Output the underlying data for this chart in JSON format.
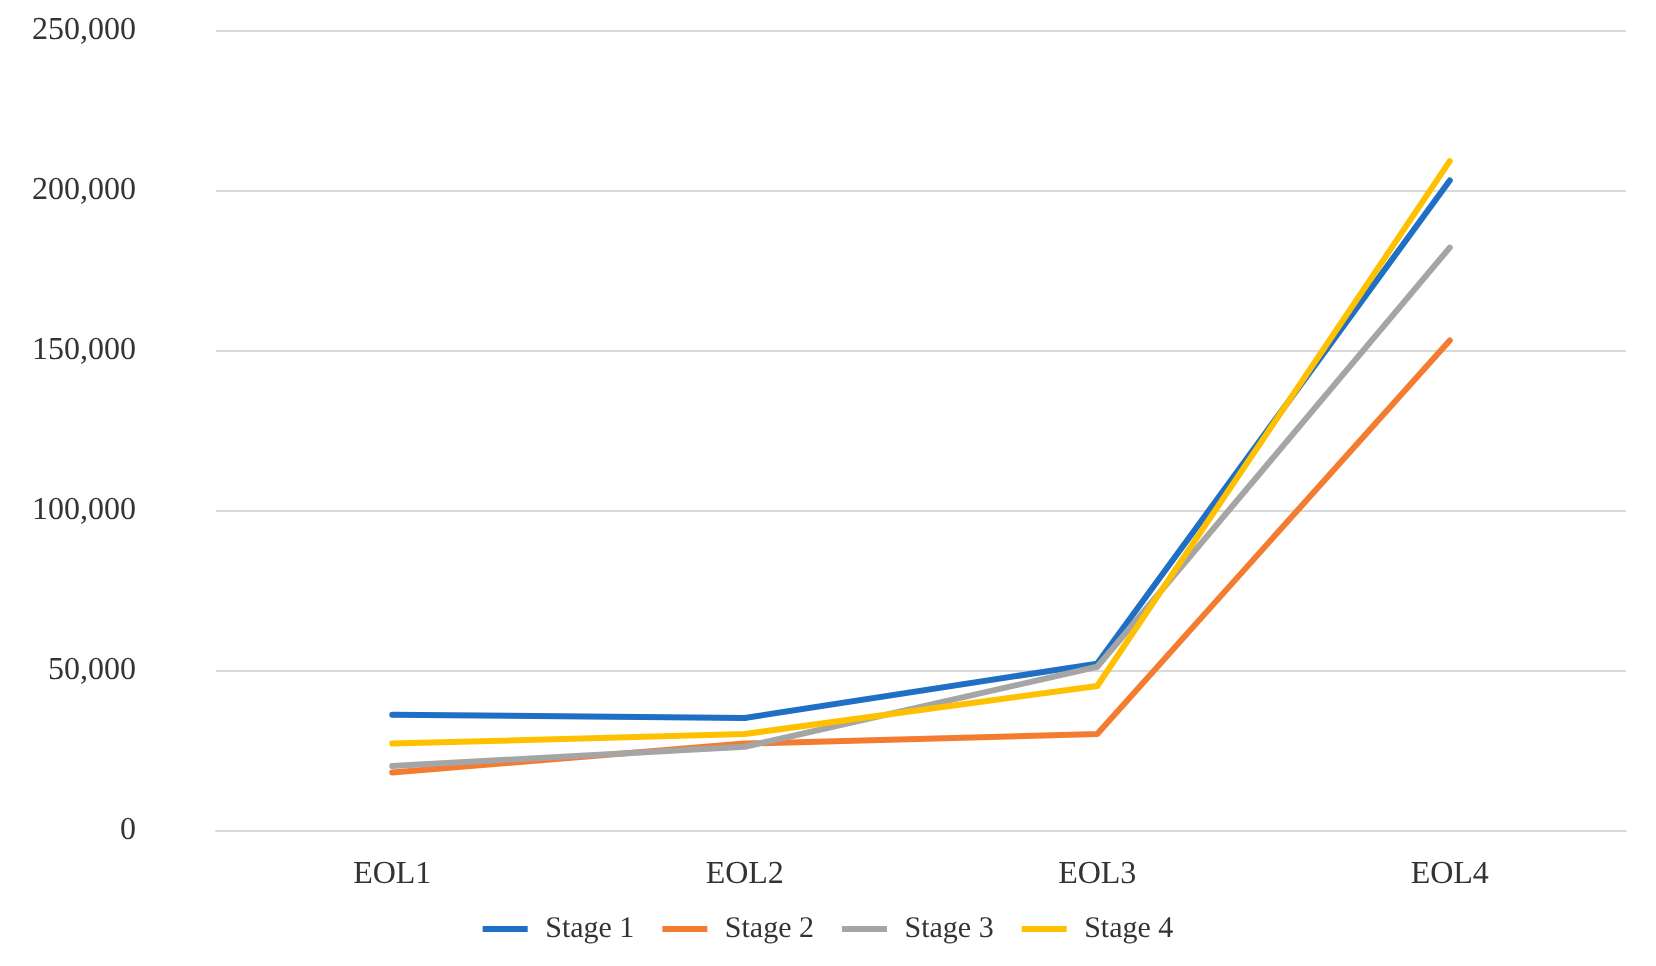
{
  "chart_data": {
    "type": "line",
    "categories": [
      "EOL1",
      "EOL2",
      "EOL3",
      "EOL4"
    ],
    "series": [
      {
        "name": "Stage 1",
        "color": "#1f6fc5",
        "values": [
          36000,
          35000,
          52000,
          203000
        ]
      },
      {
        "name": "Stage 2",
        "color": "#f47c30",
        "values": [
          18000,
          27000,
          30000,
          153000
        ]
      },
      {
        "name": "Stage 3",
        "color": "#a5a5a5",
        "values": [
          20000,
          26000,
          51000,
          182000
        ]
      },
      {
        "name": "Stage 4",
        "color": "#ffc000",
        "values": [
          27000,
          30000,
          45000,
          209000
        ]
      }
    ],
    "ylim": [
      0,
      250000
    ],
    "yticks": [
      0,
      {
        "value": 50000,
        "label": "50,000"
      },
      {
        "value": 100000,
        "label": "100,000"
      },
      {
        "value": 150000,
        "label": "150,000"
      },
      {
        "value": 200000,
        "label": "200,000"
      },
      {
        "value": 250000,
        "label": "250,000"
      }
    ],
    "grid": "y",
    "legend": "bottom",
    "marker": "none",
    "line_style": "solid"
  }
}
